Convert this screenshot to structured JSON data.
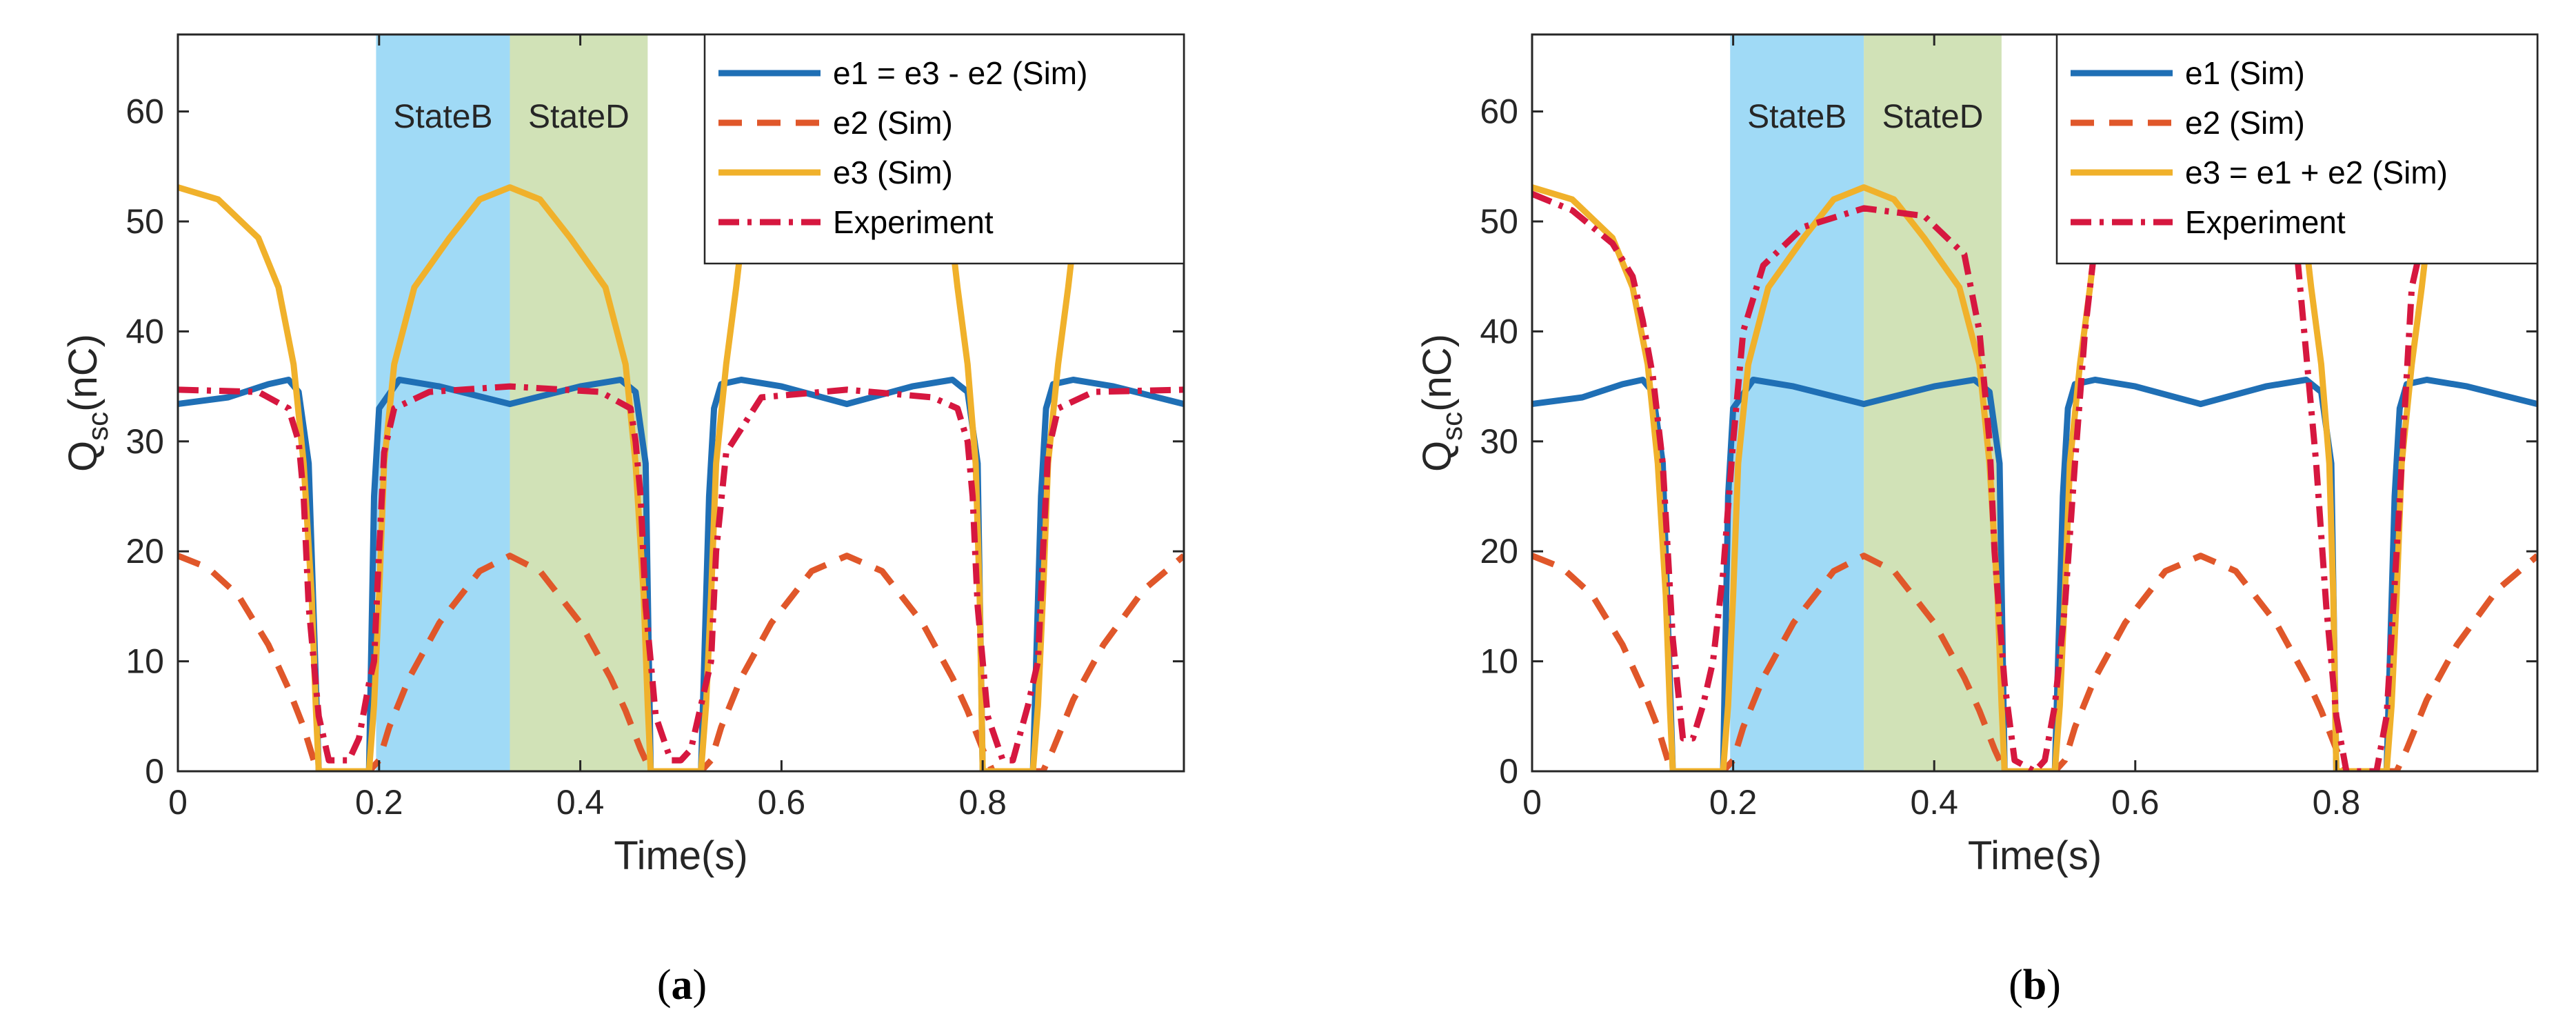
{
  "figure_captions": [
    "a",
    "b"
  ],
  "chart_data": [
    {
      "type": "line",
      "panel": "(a)",
      "xlabel": "Time(s)",
      "ylabel": {
        "main": "Q",
        "sub": "sc",
        "unit": "(nC)"
      },
      "xlim": [
        0,
        1
      ],
      "ylim": [
        0,
        67
      ],
      "xticks": [
        0,
        0.2,
        0.4,
        0.6,
        0.8
      ],
      "xtick_labels": [
        "0",
        "0.2",
        "0.4",
        "0.6",
        "0.8"
      ],
      "yticks": [
        0,
        10,
        20,
        30,
        40,
        50,
        60
      ],
      "ytick_labels": [
        "0",
        "10",
        "20",
        "30",
        "40",
        "50",
        "60"
      ],
      "grid": false,
      "legend_position": "top-right",
      "regions": [
        {
          "label": "StateB",
          "x0": 0.197,
          "x1": 0.33,
          "color": "#8fd3f4"
        },
        {
          "label": "StateD",
          "x0": 0.33,
          "x1": 0.467,
          "color": "#c9ddaa"
        }
      ],
      "series": [
        {
          "name": "e1 = e3 - e2 (Sim)",
          "color": "#1f6fb5",
          "style": "solid",
          "x": [
            0,
            0.05,
            0.09,
            0.11,
            0.12,
            0.13,
            0.14,
            0.16,
            0.18,
            0.19,
            0.195,
            0.2,
            0.22,
            0.26,
            0.33,
            0.4,
            0.44,
            0.455,
            0.465,
            0.47,
            0.48,
            0.5,
            0.52,
            0.528,
            0.533,
            0.54,
            0.56,
            0.6,
            0.665,
            0.73,
            0.77,
            0.785,
            0.795,
            0.8,
            0.81,
            0.83,
            0.85,
            0.858,
            0.863,
            0.87,
            0.89,
            0.93,
            1.0
          ],
          "y": [
            33.4,
            34.0,
            35.2,
            35.6,
            34.5,
            28,
            0,
            0,
            0,
            0,
            25,
            33,
            35.6,
            35.0,
            33.4,
            35.0,
            35.6,
            34.5,
            28,
            0,
            0,
            0,
            0,
            25,
            33,
            35.2,
            35.6,
            35.0,
            33.4,
            35.0,
            35.6,
            34.5,
            28,
            0,
            0,
            0,
            0,
            25,
            33,
            35.2,
            35.6,
            35.0,
            33.4
          ]
        },
        {
          "name": "e2 (Sim)",
          "color": "#e0572a",
          "style": "dashed",
          "x": [
            0,
            0.03,
            0.06,
            0.09,
            0.11,
            0.125,
            0.135,
            0.14,
            0.15,
            0.17,
            0.19,
            0.2,
            0.21,
            0.23,
            0.26,
            0.3,
            0.33,
            0.36,
            0.4,
            0.43,
            0.445,
            0.46,
            0.47,
            0.48,
            0.5,
            0.52,
            0.53,
            0.54,
            0.56,
            0.59,
            0.63,
            0.665,
            0.7,
            0.74,
            0.77,
            0.785,
            0.8,
            0.81,
            0.83,
            0.85,
            0.86,
            0.87,
            0.89,
            0.92,
            0.96,
            1.0
          ],
          "y": [
            19.6,
            18.5,
            16,
            11.5,
            7.5,
            4,
            1,
            0,
            0,
            0,
            0,
            1,
            4,
            8.5,
            13.5,
            18.2,
            19.6,
            18.2,
            13.5,
            8.5,
            5.5,
            2,
            0,
            0,
            0,
            0,
            1,
            4,
            8.5,
            13.5,
            18.2,
            19.6,
            18.2,
            13.5,
            8.5,
            5.5,
            2,
            0,
            0,
            0,
            0,
            2,
            6.5,
            11.5,
            16.5,
            19.6
          ]
        },
        {
          "name": "e3 (Sim)",
          "color": "#f0b12b",
          "style": "solid",
          "x": [
            0,
            0.04,
            0.08,
            0.1,
            0.115,
            0.125,
            0.133,
            0.137,
            0.14,
            0.16,
            0.19,
            0.195,
            0.2,
            0.205,
            0.215,
            0.235,
            0.27,
            0.3,
            0.33,
            0.36,
            0.39,
            0.425,
            0.445,
            0.455,
            0.463,
            0.467,
            0.47,
            0.49,
            0.52,
            0.525,
            0.53,
            0.535,
            0.545,
            0.555,
            0.56,
            0.77,
            0.775,
            0.785,
            0.793,
            0.797,
            0.8,
            0.82,
            0.85,
            0.855,
            0.86,
            0.865,
            0.875,
            0.885,
            0.89
          ],
          "y": [
            53.1,
            52,
            48.5,
            44,
            37,
            28,
            16,
            6,
            0,
            0,
            0,
            6,
            16,
            28,
            37,
            44,
            48.5,
            52,
            53.1,
            52,
            48.5,
            44,
            37,
            28,
            16,
            6,
            0,
            0,
            0,
            6,
            16,
            28,
            37,
            44,
            48,
            48,
            44,
            37,
            28,
            16,
            0,
            0,
            0,
            6,
            16,
            28,
            37,
            44,
            48
          ]
        },
        {
          "name": "Experiment",
          "color": "#d6173f",
          "style": "dashdot",
          "x": [
            0,
            0.08,
            0.11,
            0.12,
            0.125,
            0.13,
            0.14,
            0.15,
            0.16,
            0.17,
            0.18,
            0.19,
            0.195,
            0.2,
            0.205,
            0.215,
            0.25,
            0.33,
            0.42,
            0.45,
            0.455,
            0.46,
            0.465,
            0.475,
            0.49,
            0.5,
            0.51,
            0.525,
            0.53,
            0.535,
            0.545,
            0.58,
            0.665,
            0.75,
            0.775,
            0.785,
            0.79,
            0.795,
            0.805,
            0.82,
            0.83,
            0.845,
            0.855,
            0.86,
            0.865,
            0.875,
            0.91,
            1.0
          ],
          "y": [
            34.7,
            34.5,
            33,
            30,
            25,
            15,
            5,
            1,
            1,
            1,
            3,
            8,
            10,
            20,
            29,
            33,
            34.5,
            35,
            34.5,
            33,
            30,
            25,
            15,
            5,
            1,
            1,
            2,
            8,
            10,
            20,
            29,
            34,
            34.7,
            34,
            33,
            30,
            25,
            15,
            5,
            1,
            1,
            6,
            10,
            20,
            29,
            33,
            34.5,
            34.7
          ]
        }
      ]
    },
    {
      "type": "line",
      "panel": "(b)",
      "xlabel": "Time(s)",
      "ylabel": {
        "main": "Q",
        "sub": "sc",
        "unit": "(nC)"
      },
      "xlim": [
        0,
        1
      ],
      "ylim": [
        0,
        67
      ],
      "xticks": [
        0,
        0.2,
        0.4,
        0.6,
        0.8
      ],
      "xtick_labels": [
        "0",
        "0.2",
        "0.4",
        "0.6",
        "0.8"
      ],
      "yticks": [
        0,
        10,
        20,
        30,
        40,
        50,
        60
      ],
      "ytick_labels": [
        "0",
        "10",
        "20",
        "30",
        "40",
        "50",
        "60"
      ],
      "grid": false,
      "legend_position": "top-right",
      "regions": [
        {
          "label": "StateB",
          "x0": 0.197,
          "x1": 0.33,
          "color": "#8fd3f4"
        },
        {
          "label": "StateD",
          "x0": 0.33,
          "x1": 0.467,
          "color": "#c9ddaa"
        }
      ],
      "series": [
        {
          "name": "e1 (Sim)",
          "color": "#1f6fb5",
          "style": "solid",
          "x": [
            0,
            0.05,
            0.09,
            0.11,
            0.12,
            0.13,
            0.14,
            0.16,
            0.18,
            0.19,
            0.195,
            0.2,
            0.22,
            0.26,
            0.33,
            0.4,
            0.44,
            0.455,
            0.465,
            0.47,
            0.48,
            0.5,
            0.52,
            0.528,
            0.533,
            0.54,
            0.56,
            0.6,
            0.665,
            0.73,
            0.77,
            0.785,
            0.795,
            0.8,
            0.81,
            0.83,
            0.85,
            0.858,
            0.863,
            0.87,
            0.89,
            0.93,
            1.0
          ],
          "y": [
            33.4,
            34.0,
            35.2,
            35.6,
            34.5,
            28,
            0,
            0,
            0,
            0,
            25,
            33,
            35.6,
            35.0,
            33.4,
            35.0,
            35.6,
            34.5,
            28,
            0,
            0,
            0,
            0,
            25,
            33,
            35.2,
            35.6,
            35.0,
            33.4,
            35.0,
            35.6,
            34.5,
            28,
            0,
            0,
            0,
            0,
            25,
            33,
            35.2,
            35.6,
            35.0,
            33.4
          ]
        },
        {
          "name": "e2 (Sim)",
          "color": "#e0572a",
          "style": "dashed",
          "x": [
            0,
            0.03,
            0.06,
            0.09,
            0.11,
            0.125,
            0.135,
            0.14,
            0.15,
            0.17,
            0.19,
            0.2,
            0.21,
            0.23,
            0.26,
            0.3,
            0.33,
            0.36,
            0.4,
            0.43,
            0.445,
            0.46,
            0.47,
            0.48,
            0.5,
            0.52,
            0.53,
            0.54,
            0.56,
            0.59,
            0.63,
            0.665,
            0.7,
            0.74,
            0.77,
            0.785,
            0.8,
            0.81,
            0.83,
            0.85,
            0.86,
            0.87,
            0.89,
            0.92,
            0.96,
            1.0
          ],
          "y": [
            19.6,
            18.5,
            16,
            11.5,
            7.5,
            4,
            1,
            0,
            0,
            0,
            0,
            1,
            4,
            8.5,
            13.5,
            18.2,
            19.6,
            18.2,
            13.5,
            8.5,
            5.5,
            2,
            0,
            0,
            0,
            0,
            1,
            4,
            8.5,
            13.5,
            18.2,
            19.6,
            18.2,
            13.5,
            8.5,
            5.5,
            2,
            0,
            0,
            0,
            0,
            2,
            6.5,
            11.5,
            16.5,
            19.6
          ]
        },
        {
          "name": "e3 = e1 + e2 (Sim)",
          "color": "#f0b12b",
          "style": "solid",
          "x": [
            0,
            0.04,
            0.08,
            0.1,
            0.115,
            0.125,
            0.133,
            0.137,
            0.14,
            0.16,
            0.19,
            0.195,
            0.2,
            0.205,
            0.215,
            0.235,
            0.27,
            0.3,
            0.33,
            0.36,
            0.39,
            0.425,
            0.445,
            0.455,
            0.463,
            0.467,
            0.47,
            0.49,
            0.52,
            0.525,
            0.53,
            0.535,
            0.545,
            0.555,
            0.56,
            0.77,
            0.775,
            0.785,
            0.793,
            0.797,
            0.8,
            0.82,
            0.85,
            0.855,
            0.86,
            0.865,
            0.875,
            0.885,
            0.89
          ],
          "y": [
            53.1,
            52,
            48.5,
            44,
            37,
            28,
            16,
            6,
            0,
            0,
            0,
            6,
            16,
            28,
            37,
            44,
            48.5,
            52,
            53.1,
            52,
            48.5,
            44,
            37,
            28,
            16,
            6,
            0,
            0,
            0,
            6,
            16,
            28,
            37,
            44,
            48,
            48,
            44,
            37,
            28,
            16,
            0,
            0,
            0,
            6,
            16,
            28,
            37,
            44,
            48
          ]
        },
        {
          "name": "Experiment",
          "color": "#d6173f",
          "style": "dashdot",
          "x": [
            0,
            0.04,
            0.08,
            0.1,
            0.11,
            0.12,
            0.13,
            0.14,
            0.15,
            0.16,
            0.17,
            0.18,
            0.19,
            0.2,
            0.21,
            0.23,
            0.27,
            0.33,
            0.39,
            0.43,
            0.445,
            0.455,
            0.46,
            0.47,
            0.48,
            0.5,
            0.51,
            0.52,
            0.53,
            0.54,
            0.55,
            0.56,
            0.76,
            0.77,
            0.78,
            0.79,
            0.8,
            0.81,
            0.82,
            0.84,
            0.85,
            0.86,
            0.87,
            0.875,
            0.885
          ],
          "y": [
            52.5,
            51,
            48,
            45,
            41,
            36,
            28,
            12,
            3,
            3,
            6,
            10,
            18,
            30,
            40,
            46,
            49.5,
            51.2,
            50.5,
            47,
            40,
            30,
            20,
            8,
            1,
            0,
            1,
            6,
            15,
            28,
            40,
            48,
            48,
            38,
            28,
            15,
            5,
            0,
            0,
            0,
            5,
            20,
            36,
            44,
            48
          ]
        }
      ]
    }
  ]
}
